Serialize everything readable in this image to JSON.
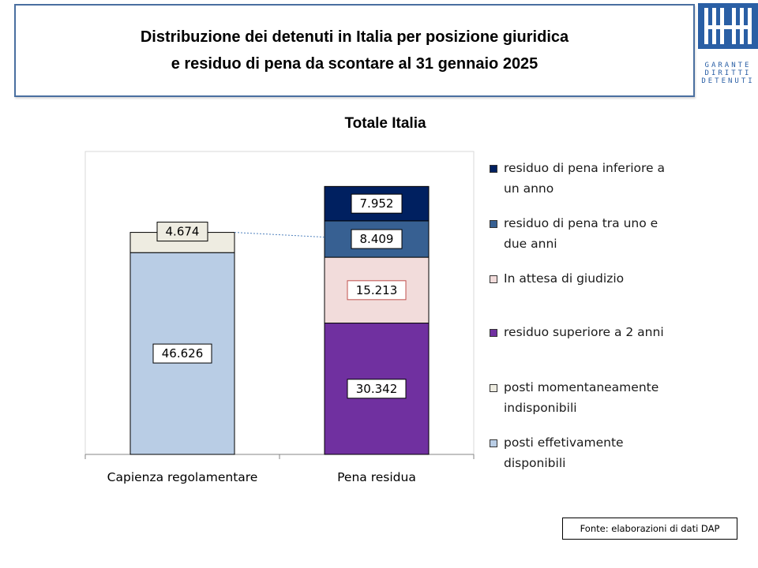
{
  "header": {
    "title_line1": "Distribuzione dei detenuti in Italia per posizione giuridica",
    "title_line2": "e residuo di pena da scontare al 31 gennaio 2025"
  },
  "logo": {
    "line1": "GARANTE",
    "line2": "DIRITTI",
    "line3": "DETENUTI",
    "color": "#2a5fa5"
  },
  "footer": {
    "source": "Fonte: elaborazioni di dati DAP"
  },
  "chart_data": {
    "type": "bar",
    "stacked": true,
    "title": "Totale Italia",
    "categories": [
      "Capienza regolamentare",
      "Pena residua"
    ],
    "ylim": [
      0,
      70000
    ],
    "grid": false,
    "legend_position": "right",
    "series": [
      {
        "name": "posti effetivamente disponibili",
        "values": [
          46626,
          null
        ],
        "labels": [
          "46.626",
          ""
        ],
        "color": "#b9cde5"
      },
      {
        "name": "posti momentaneamente indisponibili",
        "values": [
          4674,
          null
        ],
        "labels": [
          "4.674",
          ""
        ],
        "color": "#eeece1"
      },
      {
        "name": "residuo superiore a 2 anni",
        "values": [
          null,
          30342
        ],
        "labels": [
          "",
          "30.342"
        ],
        "color": "#7030a0"
      },
      {
        "name": "In attesa di giudizio",
        "values": [
          null,
          15213
        ],
        "labels": [
          "",
          "15.213"
        ],
        "color": "#f2dcdb"
      },
      {
        "name": "residuo di pena tra uno e due anni",
        "values": [
          null,
          8409
        ],
        "labels": [
          "",
          "8.409"
        ],
        "color": "#376092"
      },
      {
        "name": "residuo di pena inferiore a un anno",
        "values": [
          null,
          7952
        ],
        "labels": [
          "",
          "7.952"
        ],
        "color": "#002060"
      }
    ],
    "legend_order": [
      {
        "line1": "residuo di pena inferiore a",
        "line2": "un anno",
        "color": "#002060"
      },
      {
        "line1": "residuo di pena tra uno e",
        "line2": "due anni",
        "color": "#376092"
      },
      {
        "line1": "In attesa di giudizio",
        "line2": "",
        "color": "#f2dcdb"
      },
      {
        "line1": "residuo superiore a 2 anni",
        "line2": "",
        "color": "#7030a0"
      },
      {
        "line1": "posti momentaneamente",
        "line2": "indisponibili",
        "color": "#eeece1"
      },
      {
        "line1": "posti effetivamente",
        "line2": "disponibili",
        "color": "#b9cde5"
      }
    ]
  }
}
